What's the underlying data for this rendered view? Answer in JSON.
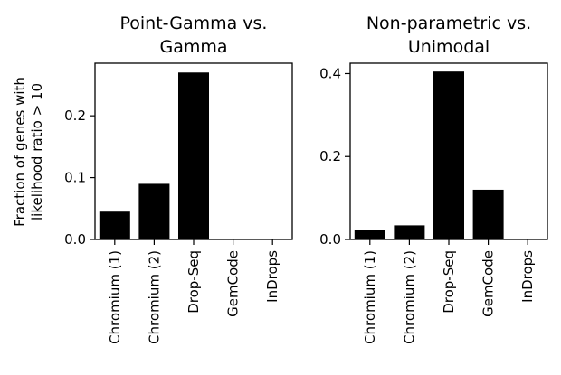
{
  "figure": {
    "ylabel_line1": "Fraction of genes with",
    "ylabel_line2": "likelihood ratio > 10"
  },
  "chart_data": [
    {
      "type": "bar",
      "title_line1": "Point-Gamma vs.",
      "title_line2": "Gamma",
      "categories": [
        "Chromium (1)",
        "Chromium (2)",
        "Drop-Seq",
        "GemCode",
        "InDrops"
      ],
      "values": [
        0.045,
        0.09,
        0.27,
        0.0,
        0.0
      ],
      "yticks": [
        0.0,
        0.1,
        0.2
      ],
      "ytick_labels": [
        "0.0",
        "0.1",
        "0.2"
      ],
      "ylim": [
        0,
        0.285
      ],
      "bar_color": "#000000"
    },
    {
      "type": "bar",
      "title_line1": "Non-parametric vs.",
      "title_line2": "Unimodal",
      "categories": [
        "Chromium (1)",
        "Chromium (2)",
        "Drop-Seq",
        "GemCode",
        "InDrops"
      ],
      "values": [
        0.022,
        0.034,
        0.405,
        0.12,
        0.0
      ],
      "yticks": [
        0.0,
        0.2,
        0.4
      ],
      "ytick_labels": [
        "0.0",
        "0.2",
        "0.4"
      ],
      "ylim": [
        0,
        0.425
      ],
      "bar_color": "#000000"
    }
  ]
}
